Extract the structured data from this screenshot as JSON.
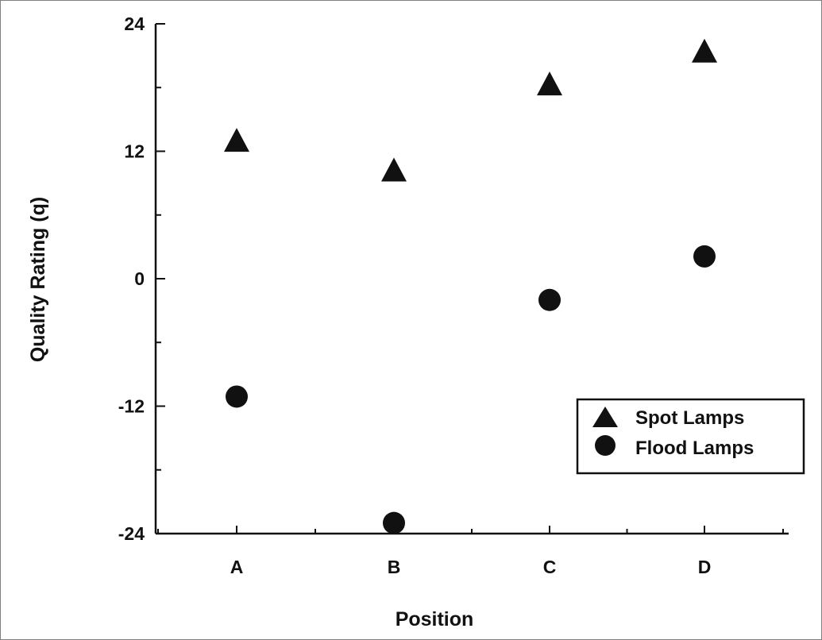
{
  "chart_data": {
    "type": "scatter",
    "title": "",
    "xlabel": "Position",
    "ylabel": "Quality Rating (q)",
    "categories": [
      "A",
      "B",
      "C",
      "D"
    ],
    "ylim": [
      -24,
      24
    ],
    "yticks": [
      "24",
      "12",
      "0",
      "-12",
      "-24"
    ],
    "ytick_values": [
      24,
      12,
      0,
      -12,
      -24
    ],
    "grid": false,
    "legend_position": "right",
    "series": [
      {
        "name": "Spot Lamps",
        "marker": "triangle",
        "values": [
          12.9,
          10.1,
          18.2,
          21.3
        ]
      },
      {
        "name": "Flood Lamps",
        "marker": "circle",
        "values": [
          -11.1,
          -23.0,
          -2.0,
          2.1
        ]
      }
    ]
  }
}
